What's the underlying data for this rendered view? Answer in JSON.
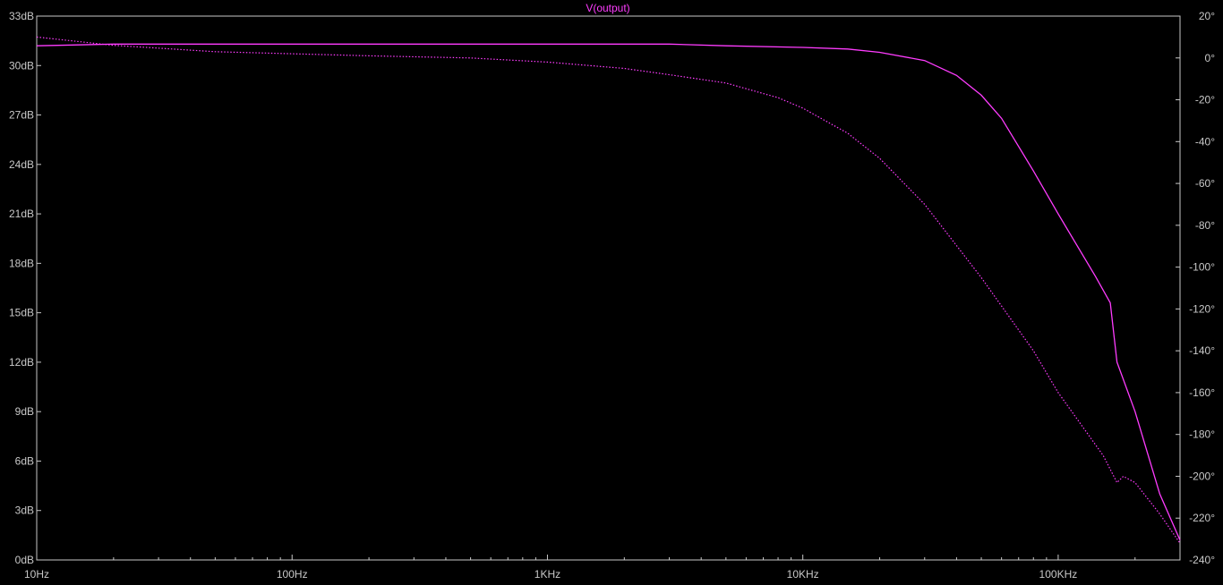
{
  "chart_data": {
    "type": "line",
    "title": "V(output)",
    "x_scale": "log",
    "x_range_hz": [
      10,
      300000
    ],
    "x_ticks": [
      "10Hz",
      "100Hz",
      "1KHz",
      "10KHz",
      "100KHz"
    ],
    "x_tick_values": [
      10,
      100,
      1000,
      10000,
      100000
    ],
    "y_left_ticks": [
      "0dB",
      "3dB",
      "6dB",
      "9dB",
      "12dB",
      "15dB",
      "18dB",
      "21dB",
      "24dB",
      "27dB",
      "30dB",
      "33dB"
    ],
    "y_left_range_db": [
      0,
      33
    ],
    "y_right_ticks": [
      "-240°",
      "-220°",
      "-200°",
      "-180°",
      "-160°",
      "-140°",
      "-120°",
      "-100°",
      "-80°",
      "-60°",
      "-40°",
      "-20°",
      "0°",
      "20°"
    ],
    "y_right_range_deg": [
      -240,
      20
    ],
    "grid": false,
    "colors": {
      "background": "#000000",
      "axis": "#c8c8c8",
      "trace": "#ff3cff"
    },
    "series": [
      {
        "name": "magnitude",
        "axis": "left",
        "style": "solid",
        "points": [
          [
            10,
            31.2
          ],
          [
            20,
            31.3
          ],
          [
            100,
            31.3
          ],
          [
            1000,
            31.3
          ],
          [
            3000,
            31.3
          ],
          [
            5000,
            31.2
          ],
          [
            10000,
            31.1
          ],
          [
            15000,
            31.0
          ],
          [
            20000,
            30.8
          ],
          [
            30000,
            30.3
          ],
          [
            40000,
            29.4
          ],
          [
            50000,
            28.2
          ],
          [
            60000,
            26.8
          ],
          [
            80000,
            23.6
          ],
          [
            100000,
            21.0
          ],
          [
            140000,
            17.2
          ],
          [
            160000,
            15.6
          ],
          [
            170000,
            12.0
          ],
          [
            200000,
            9.0
          ],
          [
            250000,
            4.0
          ],
          [
            300000,
            1.2
          ]
        ]
      },
      {
        "name": "phase",
        "axis": "right",
        "style": "dotted",
        "points": [
          [
            10,
            10
          ],
          [
            20,
            6
          ],
          [
            50,
            3
          ],
          [
            100,
            2
          ],
          [
            200,
            1
          ],
          [
            500,
            0
          ],
          [
            1000,
            -2
          ],
          [
            2000,
            -5
          ],
          [
            3000,
            -8
          ],
          [
            5000,
            -12
          ],
          [
            8000,
            -19
          ],
          [
            10000,
            -24
          ],
          [
            15000,
            -36
          ],
          [
            20000,
            -48
          ],
          [
            30000,
            -70
          ],
          [
            50000,
            -105
          ],
          [
            80000,
            -140
          ],
          [
            100000,
            -160
          ],
          [
            150000,
            -190
          ],
          [
            170000,
            -203
          ],
          [
            180000,
            -200
          ],
          [
            200000,
            -203
          ],
          [
            250000,
            -218
          ],
          [
            300000,
            -232
          ]
        ]
      }
    ]
  }
}
